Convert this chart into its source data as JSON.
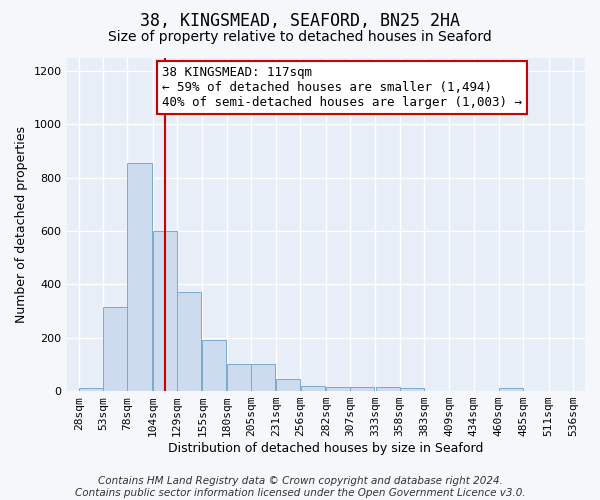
{
  "title1": "38, KINGSMEAD, SEAFORD, BN25 2HA",
  "title2": "Size of property relative to detached houses in Seaford",
  "xlabel": "Distribution of detached houses by size in Seaford",
  "ylabel": "Number of detached properties",
  "bin_edges": [
    28,
    53,
    78,
    104,
    129,
    155,
    180,
    205,
    231,
    256,
    282,
    307,
    333,
    358,
    383,
    409,
    434,
    460,
    485,
    511,
    536
  ],
  "bar_heights": [
    13,
    315,
    855,
    600,
    370,
    190,
    100,
    100,
    45,
    20,
    15,
    15,
    15,
    10,
    0,
    0,
    0,
    10,
    0,
    0,
    0
  ],
  "bar_color": "#ccdcee",
  "bar_edgecolor": "#7aaacc",
  "vline_x": 117,
  "vline_color": "#cc0000",
  "annotation_text": "38 KINGSMEAD: 117sqm\n← 59% of detached houses are smaller (1,494)\n40% of semi-detached houses are larger (1,003) →",
  "annotation_box_color": "#ffffff",
  "annotation_box_edgecolor": "#cc0000",
  "ylim": [
    0,
    1250
  ],
  "yticks": [
    0,
    200,
    400,
    600,
    800,
    1000,
    1200
  ],
  "background_color": "#e8eef8",
  "grid_color": "#ffffff",
  "footer_text": "Contains HM Land Registry data © Crown copyright and database right 2024.\nContains public sector information licensed under the Open Government Licence v3.0.",
  "title1_fontsize": 12,
  "title2_fontsize": 10,
  "xlabel_fontsize": 9,
  "ylabel_fontsize": 9,
  "tick_fontsize": 8,
  "annotation_fontsize": 9,
  "footer_fontsize": 7.5
}
